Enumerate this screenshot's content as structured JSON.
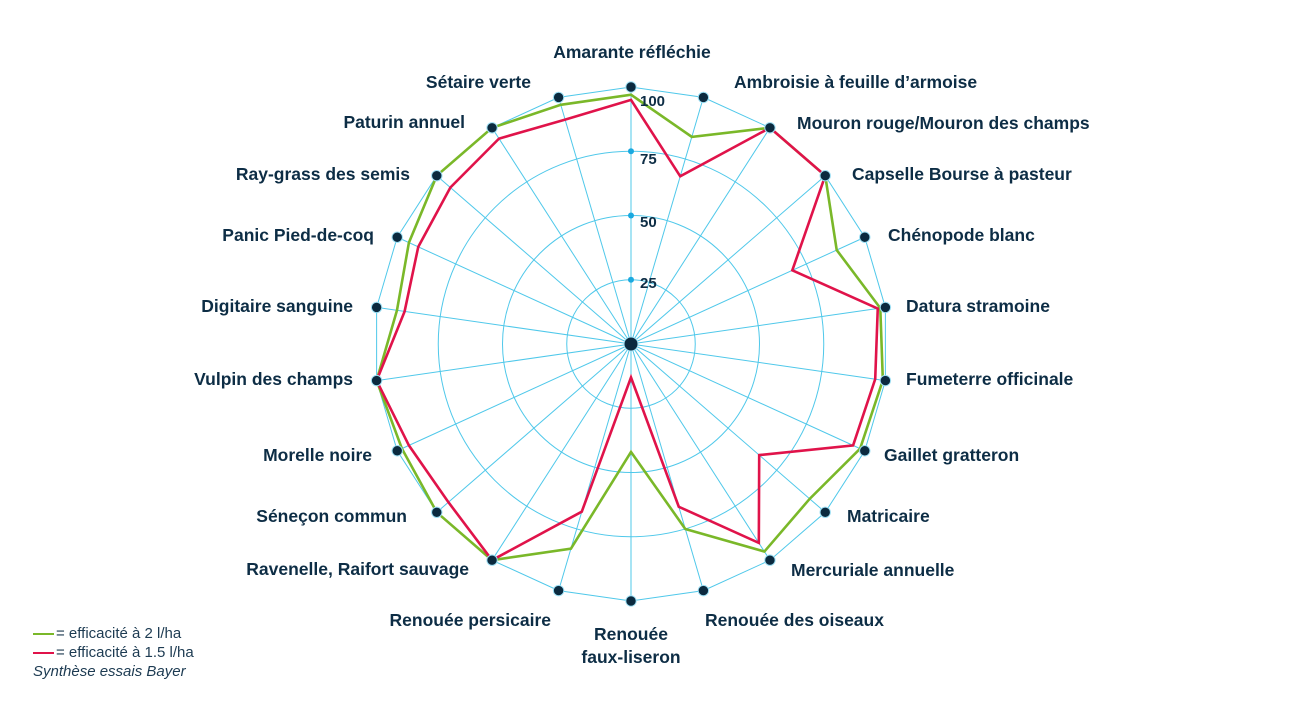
{
  "chart_data": {
    "type": "radar",
    "axes": [
      "Amarante réfléchie",
      "Ambroisie à feuille d’armoise",
      "Mouron rouge/Mouron des champs",
      "Capselle Bourse à pasteur",
      "Chénopode blanc",
      "Datura stramoine",
      "Fumeterre officinale",
      "Gaillet gratteron",
      "Matricaire",
      "Mercuriale annuelle",
      "Renouée des oiseaux",
      "Renouée faux-liseron",
      "Renouée persicaire",
      "Ravenelle, Raifort sauvage",
      "Séneçon commun",
      "Morelle noire",
      "Vulpin des champs",
      "Digitaire sanguine",
      "Panic Pied-de-coq",
      "Ray-grass des semis",
      "Paturin annuel",
      "Sétaire verte"
    ],
    "rlim": [
      0,
      100
    ],
    "ticks": [
      "25",
      "50",
      "75",
      "100"
    ],
    "tick_values": [
      25,
      50,
      75,
      100
    ],
    "series": [
      {
        "name": "= efficacité à 2 l/ha",
        "color": "#7ab829",
        "values": [
          97,
          84,
          100,
          100,
          88,
          98,
          99,
          98,
          92,
          96,
          75,
          42,
          83,
          100,
          100,
          98,
          100,
          92,
          95,
          100,
          100,
          97
        ]
      },
      {
        "name": "= efficacité à 1.5 l/ha",
        "color": "#e0134a",
        "values": [
          95,
          68,
          100,
          100,
          69,
          97,
          96,
          95,
          66,
          92,
          66,
          13,
          68,
          100,
          94,
          95,
          100,
          89,
          91,
          93,
          95,
          91
        ]
      }
    ],
    "grid_color": "#4fc8ea",
    "marker_color": "#0b2a3f",
    "legend_position": "bottom-left",
    "source": "Synthèse essais Bayer"
  }
}
